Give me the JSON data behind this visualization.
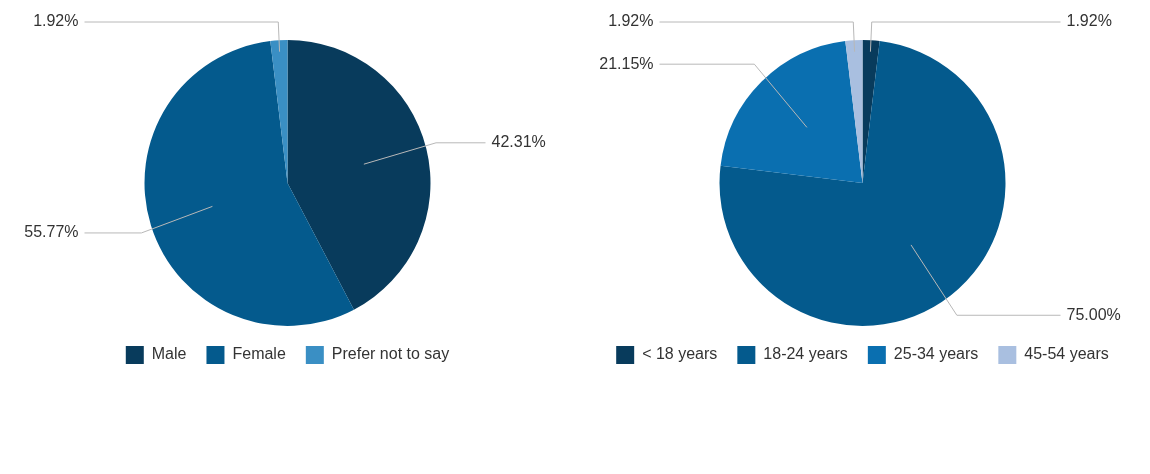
{
  "chart_data": [
    {
      "type": "pie",
      "categories": [
        "Male",
        "Female",
        "Prefer not to say"
      ],
      "values": [
        42.31,
        55.77,
        1.92
      ],
      "colors": [
        "#083b5c",
        "#045a8d",
        "#3a8fc4"
      ],
      "value_labels": [
        "42.31%",
        "55.77%",
        "1.92%"
      ],
      "legend": "bottom"
    },
    {
      "type": "pie",
      "categories": [
        "< 18 years",
        "18-24 years",
        "25-34 years",
        "45-54 years"
      ],
      "values": [
        1.92,
        75.0,
        21.15,
        1.92
      ],
      "colors": [
        "#083b5c",
        "#045a8d",
        "#0a6fb0",
        "#a9bfe0"
      ],
      "value_labels": [
        "1.92%",
        "75.00%",
        "21.15%",
        "1.92%"
      ],
      "legend": "bottom"
    }
  ]
}
